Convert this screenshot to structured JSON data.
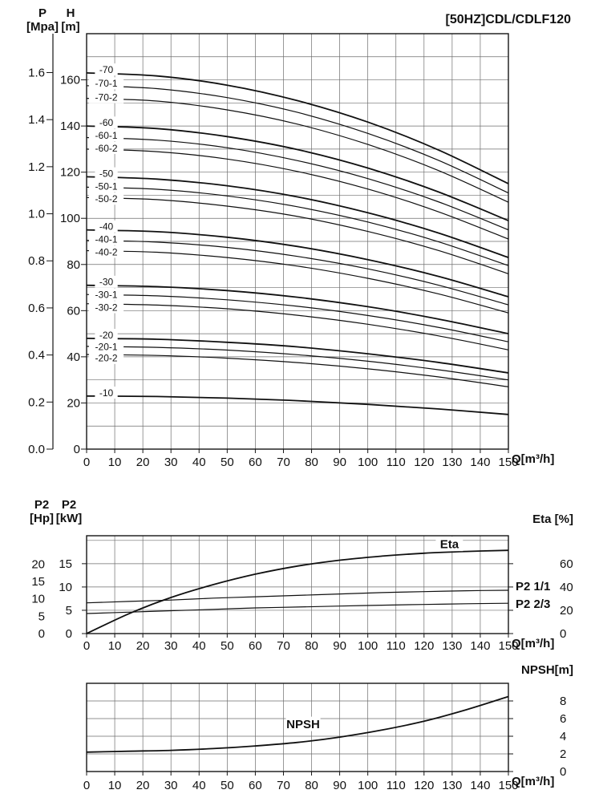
{
  "title": "[50HZ]CDL/CDLF120",
  "axis_titles": {
    "p": {
      "line1": "P",
      "line2": "[Mpa]"
    },
    "h": {
      "line1": "H",
      "line2": "[m]"
    },
    "p2hp": {
      "line1": "P2",
      "line2": "[Hp]"
    },
    "p2kw": {
      "line1": "P2",
      "line2": "[kW]"
    },
    "q": "Q[m³/h]"
  },
  "chart_data": [
    {
      "id": "head-capacity",
      "type": "line",
      "title": "[50HZ]CDL/CDLF120",
      "xlabel": "Q[m³/h]",
      "ylabel": "H [m]",
      "x_range": [
        0,
        150
      ],
      "x_grid_step": 10,
      "x_ticks": [
        0,
        10,
        20,
        30,
        40,
        50,
        60,
        70,
        80,
        90,
        100,
        110,
        120,
        130,
        140,
        150
      ],
      "y_axes": {
        "h": {
          "label": "H [m]",
          "range": [
            0,
            180
          ],
          "ticks": [
            0,
            20,
            40,
            60,
            80,
            100,
            120,
            140,
            160
          ]
        },
        "p": {
          "label": "P [Mpa]",
          "mpa_to_m": 101.97,
          "ticks": [
            "0.0",
            "0.2",
            "0.4",
            "0.6",
            "0.8",
            "1.0",
            "1.2",
            "1.4",
            "1.6"
          ]
        }
      },
      "q_points": [
        0,
        25,
        50,
        75,
        100,
        125,
        150
      ],
      "series": [
        {
          "name": "-70",
          "bold": true,
          "h": [
            163,
            161.7,
            157.7,
            151,
            141.7,
            129.7,
            115
          ],
          "label_at": [
            7,
            164.5
          ]
        },
        {
          "name": "-70-1",
          "bold": false,
          "h": [
            157.5,
            156.2,
            152.3,
            145.9,
            136.8,
            125.2,
            111
          ],
          "label_at": [
            7,
            158.5
          ]
        },
        {
          "name": "-70-2",
          "bold": false,
          "h": [
            152,
            150.8,
            147,
            140.8,
            132,
            120.8,
            107
          ],
          "label_at": [
            7,
            152.5
          ]
        },
        {
          "name": "-60",
          "bold": true,
          "h": [
            140,
            138.9,
            135.4,
            129.8,
            121.8,
            111.5,
            99
          ],
          "label_at": [
            7,
            141.5
          ]
        },
        {
          "name": "-60-1",
          "bold": false,
          "h": [
            135,
            133.9,
            130.6,
            125,
            117.2,
            107.2,
            95
          ],
          "label_at": [
            7,
            136
          ]
        },
        {
          "name": "-60-2",
          "bold": false,
          "h": [
            130,
            128.9,
            125.7,
            120.3,
            112.7,
            102.9,
            91
          ],
          "label_at": [
            7,
            130.5
          ]
        },
        {
          "name": "-50",
          "bold": true,
          "h": [
            118,
            117,
            114.1,
            109.3,
            102.4,
            93.7,
            83
          ],
          "label_at": [
            7,
            119.5
          ]
        },
        {
          "name": "-50-1",
          "bold": false,
          "h": [
            113.5,
            112.6,
            109.7,
            105,
            98.4,
            89.9,
            79.5
          ],
          "label_at": [
            7,
            114
          ]
        },
        {
          "name": "-50-2",
          "bold": false,
          "h": [
            109,
            108.1,
            105.3,
            100.8,
            94.3,
            86.1,
            76
          ],
          "label_at": [
            7,
            108.5
          ]
        },
        {
          "name": "-40",
          "bold": true,
          "h": [
            95,
            94.2,
            91.8,
            87.8,
            82.1,
            74.9,
            66
          ],
          "label_at": [
            7,
            96.5
          ]
        },
        {
          "name": "-40-1",
          "bold": false,
          "h": [
            90.5,
            89.7,
            87.4,
            83.5,
            78.1,
            71.1,
            62.5
          ],
          "label_at": [
            7,
            91
          ]
        },
        {
          "name": "-40-2",
          "bold": false,
          "h": [
            86,
            85.3,
            83,
            79.3,
            74,
            67.3,
            59
          ],
          "label_at": [
            7,
            85.5
          ]
        },
        {
          "name": "-30",
          "bold": true,
          "h": [
            71,
            70.4,
            68.7,
            65.8,
            61.7,
            56.4,
            50
          ],
          "label_at": [
            7,
            72.5
          ]
        },
        {
          "name": "-30-1",
          "bold": false,
          "h": [
            67,
            66.4,
            64.7,
            61.9,
            57.9,
            52.8,
            46.5
          ],
          "label_at": [
            7,
            67
          ]
        },
        {
          "name": "-30-2",
          "bold": false,
          "h": [
            63,
            62.4,
            60.8,
            58,
            54.1,
            49.1,
            43
          ],
          "label_at": [
            7,
            61.5
          ]
        },
        {
          "name": "-20",
          "bold": true,
          "h": [
            48,
            47.6,
            46.3,
            44.3,
            41.3,
            37.6,
            33
          ],
          "label_at": [
            7,
            49.5
          ]
        },
        {
          "name": "-20-1",
          "bold": false,
          "h": [
            44.5,
            44.1,
            42.9,
            40.9,
            38.1,
            34.4,
            30
          ],
          "label_at": [
            7,
            44.5
          ]
        },
        {
          "name": "-20-2",
          "bold": false,
          "h": [
            41,
            40.6,
            39.4,
            37.5,
            34.8,
            31.3,
            27
          ],
          "label_at": [
            7,
            39.5
          ]
        },
        {
          "name": "-10",
          "bold": true,
          "h": [
            23,
            22.8,
            22.1,
            21,
            19.4,
            17.4,
            15
          ],
          "label_at": [
            7,
            24.5
          ]
        }
      ]
    },
    {
      "id": "power-efficiency",
      "type": "line",
      "xlabel": "Q[m³/h]",
      "x_range": [
        0,
        150
      ],
      "x_grid_step": 10,
      "x_ticks": [
        0,
        10,
        20,
        30,
        40,
        50,
        60,
        70,
        80,
        90,
        100,
        110,
        120,
        130,
        140,
        150
      ],
      "y_axes": {
        "hp": {
          "label": "P2 [Hp]",
          "range": [
            0,
            28.16
          ],
          "ticks": [
            0,
            5,
            10,
            15,
            20
          ]
        },
        "kw": {
          "label": "P2 [kW]",
          "range": [
            0,
            21
          ],
          "ticks": [
            0,
            5,
            10,
            15
          ]
        },
        "eta": {
          "label": "Eta [%]",
          "range": [
            0,
            84
          ],
          "ticks": [
            0,
            20,
            40,
            60
          ]
        }
      },
      "q_points": [
        0,
        15,
        30,
        45,
        60,
        75,
        90,
        105,
        120,
        135,
        150
      ],
      "series": [
        {
          "name": "Eta",
          "axis": "eta",
          "bold": true,
          "values": [
            0,
            17,
            31,
            42,
            51,
            58,
            63,
            66.5,
            69,
            70.5,
            71.5
          ],
          "label": "Eta",
          "label_at": [
            129,
            77
          ]
        },
        {
          "name": "P2 1/1",
          "axis": "kw",
          "bold": false,
          "values": [
            6.6,
            6.9,
            7.2,
            7.6,
            7.9,
            8.2,
            8.5,
            8.8,
            9.0,
            9.2,
            9.3
          ]
        },
        {
          "name": "P2 2/3",
          "axis": "kw",
          "bold": false,
          "values": [
            4.3,
            4.6,
            4.9,
            5.2,
            5.5,
            5.7,
            5.9,
            6.1,
            6.25,
            6.4,
            6.5
          ]
        }
      ]
    },
    {
      "id": "npsh",
      "type": "line",
      "xlabel": "Q[m³/h]",
      "x_range": [
        0,
        150
      ],
      "x_grid_step": 10,
      "x_ticks": [
        0,
        10,
        20,
        30,
        40,
        50,
        60,
        70,
        80,
        90,
        100,
        110,
        120,
        130,
        140,
        150
      ],
      "y_axes": {
        "npsh": {
          "label": "NPSH[m]",
          "range": [
            0,
            10
          ],
          "ticks": [
            0,
            2,
            4,
            6,
            8
          ]
        }
      },
      "q_points": [
        0,
        15,
        30,
        45,
        60,
        75,
        90,
        105,
        120,
        135,
        150
      ],
      "series": [
        {
          "name": "NPSH",
          "axis": "npsh",
          "bold": true,
          "values": [
            2.2,
            2.3,
            2.4,
            2.6,
            2.9,
            3.3,
            3.9,
            4.7,
            5.7,
            7.0,
            8.5
          ],
          "label": "NPSH",
          "label_at": [
            77,
            5.4
          ]
        }
      ]
    }
  ]
}
